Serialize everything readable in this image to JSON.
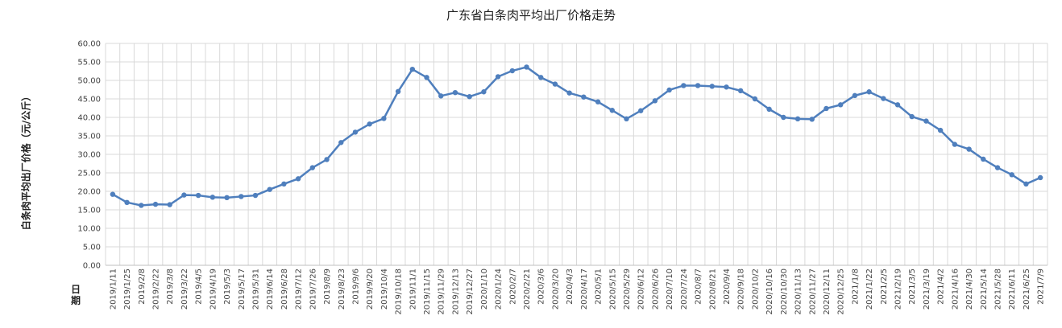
{
  "chart_data": {
    "type": "line",
    "title": "广东省白条肉平均出厂价格走势",
    "ylabel": "白条肉平均出厂价格（元/公斤）",
    "xlabel": "日期",
    "ylim": [
      0,
      60
    ],
    "yticks": [
      "0.00",
      "5.00",
      "10.00",
      "15.00",
      "20.00",
      "25.00",
      "30.00",
      "35.00",
      "40.00",
      "45.00",
      "50.00",
      "55.00",
      "60.00"
    ],
    "grid": true,
    "x": [
      "2019/1/11",
      "2019/1/25",
      "2019/2/8",
      "2019/2/22",
      "2019/3/8",
      "2019/3/22",
      "2019/4/5",
      "2019/4/19",
      "2019/5/3",
      "2019/5/17",
      "2019/5/31",
      "2019/6/14",
      "2019/6/28",
      "2019/7/12",
      "2019/7/26",
      "2019/8/9",
      "2019/8/23",
      "2019/9/6",
      "2019/9/20",
      "2019/10/4",
      "2019/10/18",
      "2019/11/1",
      "2019/11/15",
      "2019/11/29",
      "2019/12/13",
      "2019/12/27",
      "2020/1/10",
      "2020/1/24",
      "2020/2/7",
      "2020/2/21",
      "2020/3/6",
      "2020/3/20",
      "2020/4/3",
      "2020/4/17",
      "2020/5/1",
      "2020/5/15",
      "2020/5/29",
      "2020/6/12",
      "2020/6/26",
      "2020/7/10",
      "2020/7/24",
      "2020/8/7",
      "2020/8/21",
      "2020/9/4",
      "2020/9/18",
      "2020/10/2",
      "2020/10/16",
      "2020/10/30",
      "2020/11/13",
      "2020/11/27",
      "2020/12/11",
      "2020/12/25",
      "2021/1/8",
      "2021/1/22",
      "2021/2/5",
      "2021/2/19",
      "2021/3/5",
      "2021/3/19",
      "2021/4/2",
      "2021/4/16",
      "2021/4/30",
      "2021/5/14",
      "2021/5/28",
      "2021/6/11",
      "2021/6/25",
      "2021/7/9"
    ],
    "series": [
      {
        "color": "#4f7fbd",
        "values": [
          19.2,
          17.0,
          16.2,
          16.5,
          16.4,
          19.0,
          18.9,
          18.4,
          18.3,
          18.6,
          18.9,
          20.5,
          22.0,
          23.4,
          26.4,
          28.6,
          33.2,
          36.0,
          38.2,
          39.7,
          47.0,
          53.0,
          50.8,
          45.8,
          46.7,
          45.6,
          46.9,
          51.0,
          52.6,
          53.6,
          50.8,
          49.0,
          46.6,
          45.5,
          44.2,
          41.9,
          39.6,
          41.8,
          44.5,
          47.4,
          48.6,
          48.6,
          48.4,
          48.2,
          47.2,
          45.0,
          42.2,
          40.0,
          39.6,
          39.5,
          42.4,
          43.4,
          45.9,
          46.9,
          45.1,
          43.4,
          40.2,
          39.0,
          36.5,
          32.7,
          31.4,
          28.7,
          26.4,
          24.5,
          22.0,
          23.7
        ]
      }
    ]
  }
}
